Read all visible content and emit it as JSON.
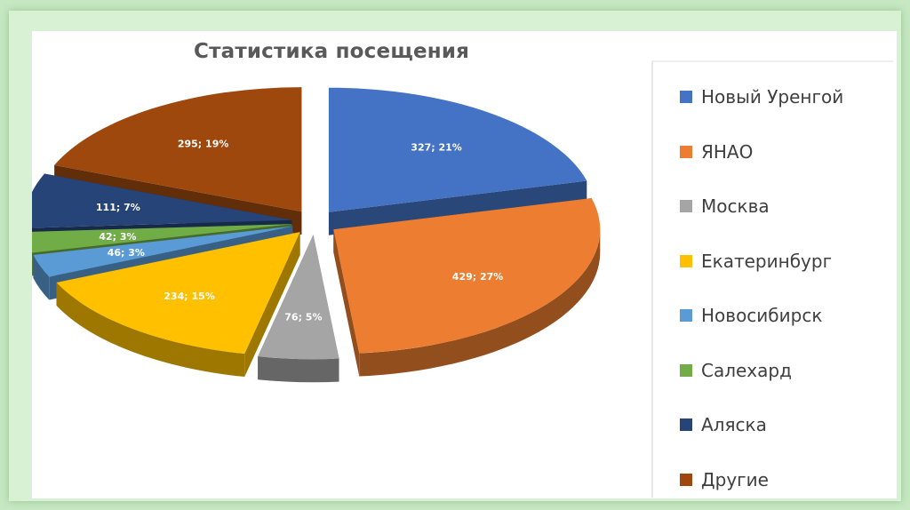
{
  "chart_data": {
    "type": "pie",
    "title": "Статистика посещения",
    "categories": [
      "Новый Уренгой",
      "ЯНАО",
      "Москва",
      "Екатеринбург",
      "Новосибирск",
      "Салехард",
      "Аляска",
      "Другие"
    ],
    "values": [
      327,
      429,
      76,
      234,
      46,
      42,
      111,
      295
    ],
    "percents": [
      21,
      27,
      5,
      15,
      3,
      3,
      7,
      19
    ],
    "data_labels": [
      "327; 21%",
      "429; 27%",
      "76; 5%",
      "234; 15%",
      "46; 3%",
      "42; 3%",
      "111; 7%",
      "295; 19%"
    ],
    "colors": [
      "#4472c4",
      "#ed7d31",
      "#a5a5a5",
      "#ffc000",
      "#5b9bd5",
      "#70ad47",
      "#264478",
      "#9e480e"
    ],
    "exploded": true,
    "three_d": true,
    "legend_position": "right"
  }
}
